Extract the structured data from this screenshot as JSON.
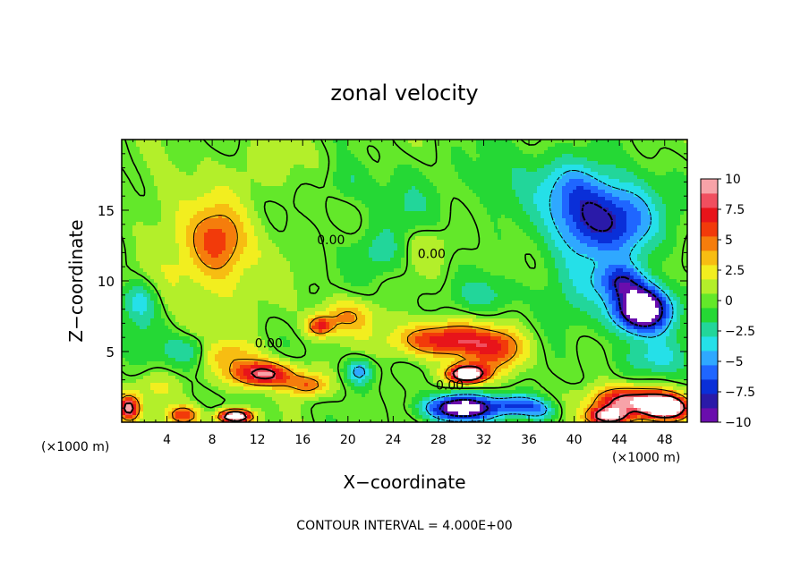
{
  "chart_data": {
    "type": "heatmap",
    "title": "zonal velocity",
    "xlabel": "X−coordinate",
    "ylabel": "Z−coordinate",
    "x_unit": "(×1000 m)",
    "x_unit_right": "(×1000 m)",
    "xlim": [
      0,
      50
    ],
    "ylim": [
      0,
      20
    ],
    "x_ticks": [
      4,
      8,
      12,
      16,
      20,
      24,
      28,
      32,
      36,
      40,
      44,
      48
    ],
    "y_ticks": [
      5,
      10,
      15
    ],
    "footer": "CONTOUR INTERVAL = 4.000E+00",
    "contour_interval": 4,
    "contour_labels": [
      {
        "text": "0.00",
        "x": 18.5,
        "y": 12.6
      },
      {
        "text": "0.00",
        "x": 27.4,
        "y": 11.6
      },
      {
        "text": "0.00",
        "x": 13.0,
        "y": 5.3
      },
      {
        "text": "0.00",
        "x": 29.0,
        "y": 2.3
      }
    ],
    "colorbar": {
      "min": -10,
      "max": 10,
      "tick_labels": [
        "10",
        "7.5",
        "5",
        "2.5",
        "0",
        "−2.5",
        "−5",
        "−7.5",
        "−10"
      ],
      "tick_values": [
        10,
        7.5,
        5,
        2.5,
        0,
        -2.5,
        -5,
        -7.5,
        -10
      ],
      "colors": [
        "#6a0dad",
        "#2a1aa8",
        "#0a2fd8",
        "#1f66ff",
        "#2fa8ff",
        "#25e0e8",
        "#22d69a",
        "#25d835",
        "#63e82a",
        "#b3ef2a",
        "#f2ee1f",
        "#f7bd12",
        "#f57d0c",
        "#f23a0a",
        "#e8141a",
        "#f04f5f",
        "#f7a3a8"
      ]
    },
    "features": [
      {
        "x": 8.5,
        "y": 12.8,
        "sx": 2.4,
        "sy": 2.4,
        "v": 4.5
      },
      {
        "x": 8,
        "y": 11,
        "sx": 5,
        "sy": 5,
        "v": 2
      },
      {
        "x": 4,
        "y": 16,
        "sx": 3,
        "sy": 3,
        "v": 1
      },
      {
        "x": 1.5,
        "y": 8.5,
        "sx": 1.6,
        "sy": 1.4,
        "v": -4
      },
      {
        "x": 2,
        "y": 6,
        "sx": 2,
        "sy": 1.5,
        "v": -1.5
      },
      {
        "x": 6,
        "y": 5.0,
        "sx": 2,
        "sy": 1.1,
        "v": -3.5
      },
      {
        "x": 12.5,
        "y": 3.4,
        "sx": 2.8,
        "sy": 0.9,
        "v": 9
      },
      {
        "x": 9.5,
        "y": 4.8,
        "sx": 3,
        "sy": 1,
        "v": 3
      },
      {
        "x": 16.5,
        "y": 2.6,
        "sx": 1.8,
        "sy": 0.8,
        "v": 5
      },
      {
        "x": 21.0,
        "y": 3.6,
        "sx": 1.2,
        "sy": 0.9,
        "v": -5
      },
      {
        "x": 20,
        "y": 7.5,
        "sx": 2.5,
        "sy": 1.2,
        "v": 4
      },
      {
        "x": 17.5,
        "y": 6.8,
        "sx": 1.2,
        "sy": 0.7,
        "v": 6
      },
      {
        "x": 23,
        "y": 12,
        "sx": 2,
        "sy": 1.5,
        "v": -2.5
      },
      {
        "x": 27,
        "y": 12.5,
        "sx": 2.5,
        "sy": 1.5,
        "v": 1.5
      },
      {
        "x": 25,
        "y": 15,
        "sx": 3,
        "sy": 2.5,
        "v": -1.5
      },
      {
        "x": 28.5,
        "y": 5.8,
        "sx": 4.5,
        "sy": 1.2,
        "v": 7.5
      },
      {
        "x": 30.5,
        "y": 3.4,
        "sx": 1.7,
        "sy": 0.65,
        "v": 13
      },
      {
        "x": 33.5,
        "y": 5,
        "sx": 2.5,
        "sy": 1.5,
        "v": 5
      },
      {
        "x": 30,
        "y": 1.0,
        "sx": 3,
        "sy": 0.9,
        "v": -12
      },
      {
        "x": 35,
        "y": 1.2,
        "sx": 2,
        "sy": 0.8,
        "v": -6
      },
      {
        "x": 37,
        "y": 0.8,
        "sx": 1.5,
        "sy": 0.8,
        "v": -4
      },
      {
        "x": 32,
        "y": 9,
        "sx": 3,
        "sy": 1.2,
        "v": -2
      },
      {
        "x": 41.5,
        "y": 14.5,
        "sx": 3.5,
        "sy": 2.5,
        "v": -7
      },
      {
        "x": 45,
        "y": 14,
        "sx": 3,
        "sy": 3,
        "v": -4
      },
      {
        "x": 40,
        "y": 17,
        "sx": 3,
        "sy": 2,
        "v": -3
      },
      {
        "x": 46,
        "y": 8.0,
        "sx": 2.6,
        "sy": 1.7,
        "v": -13
      },
      {
        "x": 44,
        "y": 10,
        "sx": 2,
        "sy": 1.2,
        "v": -5
      },
      {
        "x": 40,
        "y": 10,
        "sx": 3,
        "sy": 3,
        "v": -2.5
      },
      {
        "x": 47,
        "y": 4.5,
        "sx": 3,
        "sy": 1.2,
        "v": -3
      },
      {
        "x": 45,
        "y": 1.6,
        "sx": 3.5,
        "sy": 0.9,
        "v": 9
      },
      {
        "x": 48,
        "y": 1.0,
        "sx": 2,
        "sy": 0.8,
        "v": 14
      },
      {
        "x": 43,
        "y": 0.4,
        "sx": 2,
        "sy": 0.7,
        "v": 11
      },
      {
        "x": 10,
        "y": 0.4,
        "sx": 1.5,
        "sy": 0.5,
        "v": 13
      },
      {
        "x": 0.6,
        "y": 1.0,
        "sx": 1,
        "sy": 0.9,
        "v": 9
      },
      {
        "x": 5.5,
        "y": 0.5,
        "sx": 1.5,
        "sy": 0.7,
        "v": 6
      },
      {
        "x": 3,
        "y": 2.5,
        "sx": 2,
        "sy": 1,
        "v": 2
      },
      {
        "x": 14,
        "y": 18,
        "sx": 4,
        "sy": 2,
        "v": 1
      },
      {
        "x": 20,
        "y": 17,
        "sx": 2,
        "sy": 1.5,
        "v": -2
      },
      {
        "x": 34,
        "y": 17,
        "sx": 4,
        "sy": 3,
        "v": -1.5
      }
    ]
  }
}
